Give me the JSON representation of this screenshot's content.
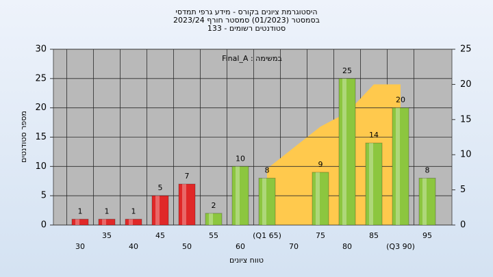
{
  "chart_data": {
    "type": "bar",
    "title": "היסטוגרמת ציונים בקורס - מידע גרפי תמדסי",
    "subtitle": "בסמסטר  (01/2023)  סמסטר חורף  2023/24",
    "subtitle2": "סטודנטים רשומים - 133",
    "annotation": "במשימה : Final_A",
    "xlabel": "טווח ציונים",
    "ylabel": "מספר סטודנטים",
    "categories": [
      "30",
      "35",
      "40",
      "45",
      "50",
      "55",
      "60",
      "(Q1 65)",
      "70",
      "75",
      "80",
      "85",
      "(Q3 90)",
      "95"
    ],
    "values": [
      1,
      1,
      1,
      5,
      7,
      2,
      10,
      8,
      null,
      9,
      25,
      14,
      20,
      8
    ],
    "colors": [
      "#e02828",
      "#e02828",
      "#e02828",
      "#e02828",
      "#e02828",
      "#8cc63f",
      "#8cc63f",
      "#8cc63f",
      "#8cc63f",
      "#8cc63f",
      "#8cc63f",
      "#8cc63f",
      "#8cc63f",
      "#8cc63f"
    ],
    "area": {
      "color": "#ffc94d",
      "axis": "y2",
      "values": [
        null,
        null,
        null,
        null,
        null,
        null,
        null,
        8,
        11,
        14,
        16,
        20,
        20,
        null
      ]
    },
    "ylim": [
      0,
      30
    ],
    "yticks": [
      0,
      5,
      10,
      15,
      20,
      25,
      30
    ],
    "y2lim": [
      0,
      25
    ],
    "y2ticks": [
      0,
      5,
      10,
      15,
      20,
      25
    ],
    "grid": true
  }
}
